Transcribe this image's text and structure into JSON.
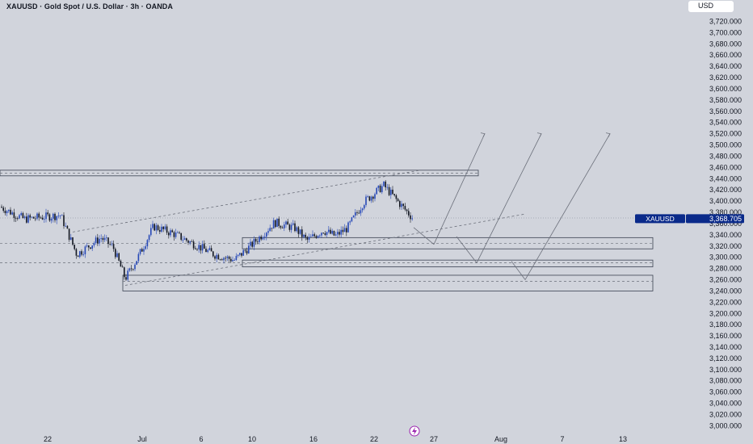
{
  "header": {
    "title": "XAUUSD · Gold Spot / U.S. Dollar · 3h · OANDA",
    "currency": "USD"
  },
  "price_axis": {
    "labels": [
      "3,720.000",
      "3,700.000",
      "3,680.000",
      "3,660.000",
      "3,640.000",
      "3,620.000",
      "3,600.000",
      "3,580.000",
      "3,560.000",
      "3,540.000",
      "3,520.000",
      "3,500.000",
      "3,480.000",
      "3,460.000",
      "3,440.000",
      "3,420.000",
      "3,400.000",
      "3,380.000",
      "3,360.000",
      "3,340.000",
      "3,320.000",
      "3,300.000",
      "3,280.000",
      "3,260.000",
      "3,240.000",
      "3,220.000",
      "3,200.000",
      "3,180.000",
      "3,160.000",
      "3,140.000",
      "3,120.000",
      "3,100.000",
      "3,080.000",
      "3,060.000",
      "3,040.000",
      "3,020.000",
      "3,000.000"
    ]
  },
  "time_axis": {
    "labels": [
      "22",
      "Jul",
      "6",
      "10",
      "16",
      "22",
      "27",
      "Aug",
      "7",
      "13"
    ]
  },
  "last_price": {
    "symbol": "XAUUSD",
    "value": "3,368.705",
    "color": "#0a2a8a"
  },
  "colors": {
    "background": "#d1d4dc",
    "candle_up": "#2748b7",
    "candle_down": "#131722",
    "drawing": "#6b6f7a"
  },
  "chart_data": {
    "type": "candlestick",
    "symbol": "XAUUSD",
    "timeframe": "3h",
    "source": "OANDA",
    "ylim": [
      3000,
      3730
    ],
    "x_ticks": [
      "22",
      "Jul",
      "6",
      "10",
      "16",
      "22",
      "27",
      "Aug",
      "7",
      "13"
    ],
    "close_path": [
      {
        "x": "Jun 18",
        "close": 3390
      },
      {
        "x": "Jun 20",
        "close": 3368
      },
      {
        "x": "Jun 22",
        "close": 3375
      },
      {
        "x": "Jun 24",
        "close": 3305
      },
      {
        "x": "Jun 26",
        "close": 3335
      },
      {
        "x": "Jun 27",
        "close": 3318
      },
      {
        "x": "Jun 30",
        "close": 3262
      },
      {
        "x": "Jul 1",
        "close": 3298
      },
      {
        "x": "Jul 3",
        "close": 3355
      },
      {
        "x": "Jul 4",
        "close": 3342
      },
      {
        "x": "Jul 7",
        "close": 3320
      },
      {
        "x": "Jul 8",
        "close": 3305
      },
      {
        "x": "Jul 9",
        "close": 3295
      },
      {
        "x": "Jul 10",
        "close": 3320
      },
      {
        "x": "Jul 11",
        "close": 3362
      },
      {
        "x": "Jul 14",
        "close": 3352
      },
      {
        "x": "Jul 15",
        "close": 3330
      },
      {
        "x": "Jul 16",
        "close": 3348
      },
      {
        "x": "Jul 17",
        "close": 3338
      },
      {
        "x": "Jul 18",
        "close": 3352
      },
      {
        "x": "Jul 21",
        "close": 3398
      },
      {
        "x": "Jul 22",
        "close": 3428
      },
      {
        "x": "Jul 23",
        "close": 3395
      },
      {
        "x": "Jul 24",
        "close": 3368
      }
    ],
    "zones": [
      {
        "from": 3445,
        "to": 3455
      },
      {
        "from": 3315,
        "to": 3335
      },
      {
        "from": 3283,
        "to": 3295
      },
      {
        "from": 3240,
        "to": 3268
      }
    ],
    "projection_waypoints": [
      3323,
      3290,
      3260
    ],
    "projection_targets": [
      3520,
      3520,
      3520
    ],
    "last_price": 3368.705
  }
}
